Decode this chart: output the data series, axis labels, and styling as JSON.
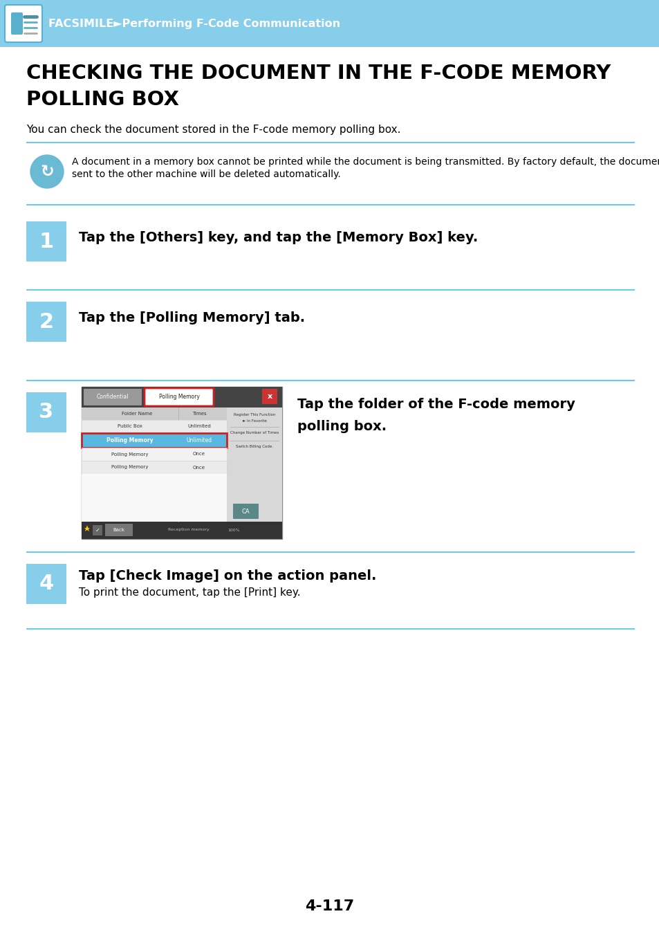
{
  "page_bg": "#ffffff",
  "header_bg": "#87CEEB",
  "header_text": "FACSIMILE►Performing F-Code Communication",
  "header_text_color": "#ffffff",
  "title_line1": "CHECKING THE DOCUMENT IN THE F-CODE MEMORY",
  "title_line2": "POLLING BOX",
  "subtitle": "You can check the document stored in the F-code memory polling box.",
  "note_text1": "A document in a memory box cannot be printed while the document is being transmitted. By factory default, the document",
  "note_text2": "sent to the other machine will be deleted automatically.",
  "divider_color": "#66CCEE",
  "step_box_color": "#87CEEB",
  "step1_text": "Tap the [Others] key, and tap the [Memory Box] key.",
  "step2_text": "Tap the [Polling Memory] tab.",
  "step3_text_normal": "Tap the folder of the F-code memory",
  "step3_text2": "polling box.",
  "step4_main": "Tap [Check Image] on the action panel.",
  "step4_sub": "To print the document, tap the [Print] key.",
  "page_number": "4-117"
}
